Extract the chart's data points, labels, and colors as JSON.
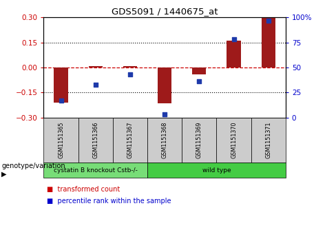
{
  "title": "GDS5091 / 1440675_at",
  "samples": [
    "GSM1151365",
    "GSM1151366",
    "GSM1151367",
    "GSM1151368",
    "GSM1151369",
    "GSM1151370",
    "GSM1151371"
  ],
  "transformed_count": [
    -0.21,
    0.01,
    0.01,
    -0.215,
    -0.04,
    0.16,
    0.3
  ],
  "percentile_rank": [
    17,
    33,
    43,
    3,
    36,
    78,
    97
  ],
  "bar_color": "#9e1a1a",
  "dot_color": "#1e3aaa",
  "ylim_left": [
    -0.3,
    0.3
  ],
  "ylim_right": [
    0,
    100
  ],
  "yticks_left": [
    -0.3,
    -0.15,
    0,
    0.15,
    0.3
  ],
  "yticks_right": [
    0,
    25,
    50,
    75,
    100
  ],
  "ytick_labels_right": [
    "0",
    "25",
    "50",
    "75",
    "100%"
  ],
  "hline_dotted": [
    -0.15,
    0.15
  ],
  "hline_dashed": 0,
  "groups": [
    {
      "label": "cystatin B knockout Cstb-/-",
      "start": 0,
      "end": 3,
      "color": "#77dd77"
    },
    {
      "label": "wild type",
      "start": 3,
      "end": 7,
      "color": "#44cc44"
    }
  ],
  "group_label_prefix": "genotype/variation",
  "legend": [
    {
      "label": "transformed count",
      "color": "#cc0000"
    },
    {
      "label": "percentile rank within the sample",
      "color": "#0000cc"
    }
  ],
  "bar_width": 0.4,
  "plot_bg": "#ffffff",
  "tick_cell_bg": "#cccccc"
}
